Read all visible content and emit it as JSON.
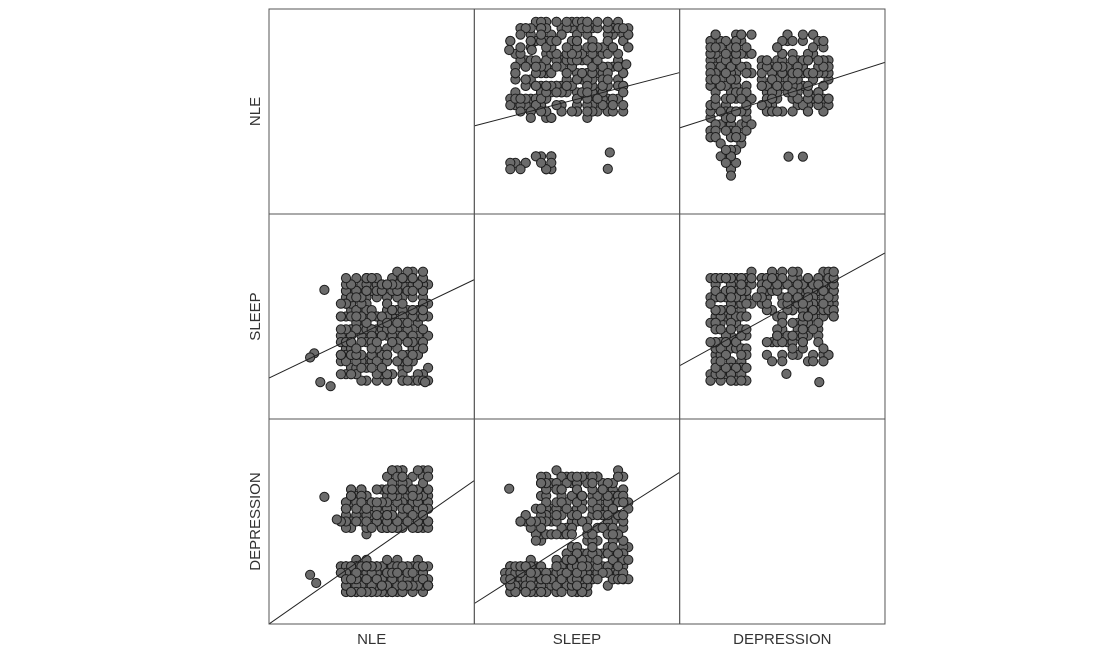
{
  "chart_data": {
    "type": "scatter",
    "subtype": "scatterplot-matrix",
    "variables": [
      "NLE",
      "SLEEP",
      "DEPRESSION"
    ],
    "row_labels": [
      "NLE",
      "SLEEP",
      "DEPRESSION"
    ],
    "col_labels": [
      "NLE",
      "SLEEP",
      "DEPRESSION"
    ],
    "diagonal": "empty",
    "fit_lines": true,
    "grid": false,
    "marker": "filled-circle",
    "colors": {
      "marker_fill": "#6b6b6b",
      "marker_edge": "#1e1e1e",
      "line": "#222222",
      "frame": "#555555"
    },
    "panels": [
      {
        "row": "NLE",
        "col": "SLEEP",
        "x_range": [
          0,
          1
        ],
        "y_range": [
          0,
          1
        ],
        "fit_line": {
          "x": [
            0,
            1
          ],
          "y": [
            0.43,
            0.69
          ]
        },
        "clusters": [
          {
            "x": [
              0.18,
              0.74
            ],
            "y": [
              0.48,
              0.78
            ],
            "n": 230
          },
          {
            "x": [
              0.18,
              0.7
            ],
            "y": [
              0.79,
              0.95
            ],
            "n": 90
          },
          {
            "x": [
              0.16,
              0.4
            ],
            "y": [
              0.2,
              0.3
            ],
            "n": 18
          },
          {
            "x": [
              0.64,
              0.76
            ],
            "y": [
              0.8,
              0.92
            ],
            "n": 12
          }
        ],
        "points": [
          [
            0.17,
            0.8
          ],
          [
            0.28,
            0.8
          ],
          [
            0.66,
            0.3
          ],
          [
            0.65,
            0.22
          ],
          [
            0.74,
            0.73
          ]
        ]
      },
      {
        "row": "NLE",
        "col": "DEPRESSION",
        "x_range": [
          0,
          1
        ],
        "y_range": [
          0,
          1
        ],
        "fit_line": {
          "x": [
            0,
            1
          ],
          "y": [
            0.42,
            0.74
          ]
        },
        "clusters": [
          {
            "x": [
              0.14,
              0.35
            ],
            "y": [
              0.35,
              0.9
            ],
            "n": 170
          },
          {
            "x": [
              0.4,
              0.74
            ],
            "y": [
              0.5,
              0.76
            ],
            "n": 120
          },
          {
            "x": [
              0.46,
              0.7
            ],
            "y": [
              0.68,
              0.88
            ],
            "n": 45
          },
          {
            "x": [
              0.18,
              0.28
            ],
            "y": [
              0.2,
              0.33
            ],
            "n": 14
          }
        ],
        "points": [
          [
            0.53,
            0.28
          ],
          [
            0.6,
            0.28
          ]
        ]
      },
      {
        "row": "SLEEP",
        "col": "NLE",
        "x_range": [
          0,
          1
        ],
        "y_range": [
          0,
          1
        ],
        "fit_line": {
          "x": [
            0,
            1
          ],
          "y": [
            0.2,
            0.68
          ]
        },
        "clusters": [
          {
            "x": [
              0.35,
              0.77
            ],
            "y": [
              0.4,
              0.7
            ],
            "n": 210
          },
          {
            "x": [
              0.35,
              0.77
            ],
            "y": [
              0.18,
              0.4
            ],
            "n": 120
          },
          {
            "x": [
              0.58,
              0.78
            ],
            "y": [
              0.62,
              0.72
            ],
            "n": 20
          }
        ],
        "points": [
          [
            0.27,
            0.63
          ],
          [
            0.22,
            0.32
          ],
          [
            0.2,
            0.3
          ],
          [
            0.25,
            0.18
          ],
          [
            0.3,
            0.16
          ],
          [
            0.76,
            0.18
          ]
        ]
      },
      {
        "row": "SLEEP",
        "col": "DEPRESSION",
        "x_range": [
          0,
          1
        ],
        "y_range": [
          0,
          1
        ],
        "fit_line": {
          "x": [
            0,
            1
          ],
          "y": [
            0.26,
            0.81
          ]
        },
        "clusters": [
          {
            "x": [
              0.15,
              0.32
            ],
            "y": [
              0.18,
              0.7
            ],
            "n": 170
          },
          {
            "x": [
              0.4,
              0.76
            ],
            "y": [
              0.5,
              0.72
            ],
            "n": 150
          },
          {
            "x": [
              0.42,
              0.72
            ],
            "y": [
              0.28,
              0.5
            ],
            "n": 60
          },
          {
            "x": [
              0.3,
              0.38
            ],
            "y": [
              0.55,
              0.72
            ],
            "n": 15
          }
        ],
        "points": [
          [
            0.68,
            0.18
          ],
          [
            0.52,
            0.22
          ]
        ]
      },
      {
        "row": "DEPRESSION",
        "col": "NLE",
        "x_range": [
          0,
          1
        ],
        "y_range": [
          0,
          1
        ],
        "fit_line": {
          "x": [
            0,
            1
          ],
          "y": [
            0.0,
            0.7
          ]
        },
        "clusters": [
          {
            "x": [
              0.35,
              0.78
            ],
            "y": [
              0.15,
              0.3
            ],
            "n": 240
          },
          {
            "x": [
              0.35,
              0.78
            ],
            "y": [
              0.45,
              0.66
            ],
            "n": 160
          },
          {
            "x": [
              0.58,
              0.78
            ],
            "y": [
              0.64,
              0.76
            ],
            "n": 40
          }
        ],
        "points": [
          [
            0.27,
            0.62
          ],
          [
            0.2,
            0.24
          ],
          [
            0.23,
            0.2
          ],
          [
            0.33,
            0.51
          ]
        ]
      },
      {
        "row": "DEPRESSION",
        "col": "SLEEP",
        "x_range": [
          0,
          1
        ],
        "y_range": [
          0,
          1
        ],
        "fit_line": {
          "x": [
            0,
            1
          ],
          "y": [
            0.1,
            0.74
          ]
        },
        "clusters": [
          {
            "x": [
              0.16,
              0.55
            ],
            "y": [
              0.15,
              0.3
            ],
            "n": 170
          },
          {
            "x": [
              0.45,
              0.75
            ],
            "y": [
              0.2,
              0.4
            ],
            "n": 110
          },
          {
            "x": [
              0.3,
              0.75
            ],
            "y": [
              0.42,
              0.74
            ],
            "n": 190
          },
          {
            "x": [
              0.2,
              0.3
            ],
            "y": [
              0.48,
              0.52
            ],
            "n": 10
          }
        ],
        "points": [
          [
            0.17,
            0.66
          ],
          [
            0.72,
            0.22
          ]
        ]
      }
    ]
  }
}
